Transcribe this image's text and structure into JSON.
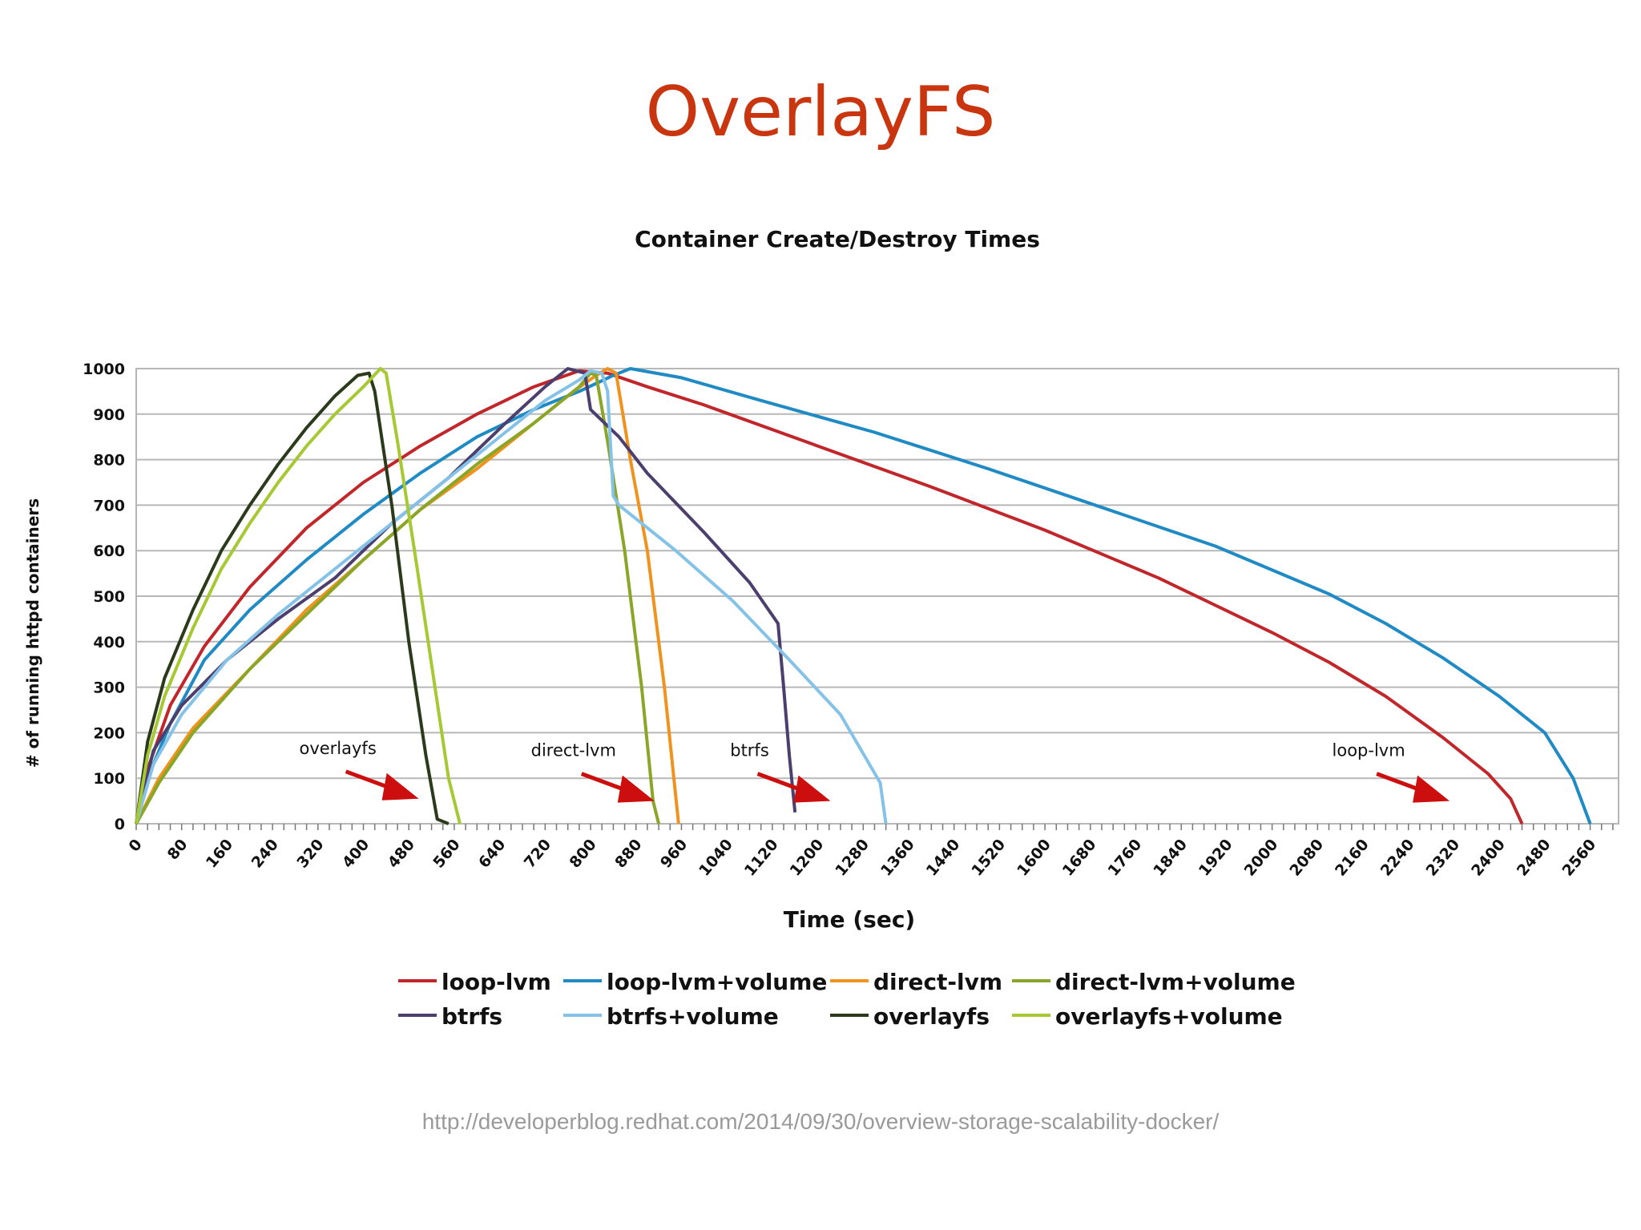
{
  "slide": {
    "title": "OverlayFS",
    "source_url": "http://developerblog.redhat.com/2014/09/30/overview-storage-scalability-docker/"
  },
  "chart_data": {
    "type": "line",
    "title": "Container Create/Destroy Times",
    "xlabel": "Time (sec)",
    "ylabel": "# of running httpd containers",
    "xlim": [
      0,
      2610
    ],
    "ylim": [
      0,
      1000
    ],
    "x_ticks": [
      "0",
      "80",
      "160",
      "240",
      "320",
      "400",
      "480",
      "560",
      "640",
      "720",
      "800",
      "880",
      "960",
      "1040",
      "1120",
      "1200",
      "1280",
      "1360",
      "1440",
      "1520",
      "1600",
      "1680",
      "1760",
      "1840",
      "1920",
      "2000",
      "2080",
      "2160",
      "2240",
      "2320",
      "2400",
      "2480",
      "2560"
    ],
    "y_ticks": [
      "0",
      "100",
      "200",
      "300",
      "400",
      "500",
      "600",
      "700",
      "800",
      "900",
      "1000"
    ],
    "grid": "horizontal",
    "legend_position": "bottom",
    "series": [
      {
        "name": "loop-lvm",
        "color": "#c0262a",
        "points": [
          [
            0,
            0
          ],
          [
            20,
            120
          ],
          [
            60,
            260
          ],
          [
            120,
            390
          ],
          [
            200,
            520
          ],
          [
            300,
            650
          ],
          [
            400,
            750
          ],
          [
            500,
            830
          ],
          [
            600,
            900
          ],
          [
            700,
            960
          ],
          [
            780,
            995
          ],
          [
            830,
            990
          ],
          [
            900,
            960
          ],
          [
            1000,
            920
          ],
          [
            1200,
            830
          ],
          [
            1400,
            740
          ],
          [
            1600,
            645
          ],
          [
            1800,
            540
          ],
          [
            2000,
            420
          ],
          [
            2100,
            355
          ],
          [
            2200,
            280
          ],
          [
            2300,
            190
          ],
          [
            2380,
            110
          ],
          [
            2420,
            55
          ],
          [
            2440,
            0
          ]
        ]
      },
      {
        "name": "loop-lvm+volume",
        "color": "#1f8ac4",
        "points": [
          [
            0,
            0
          ],
          [
            20,
            100
          ],
          [
            60,
            220
          ],
          [
            120,
            360
          ],
          [
            200,
            470
          ],
          [
            300,
            580
          ],
          [
            400,
            680
          ],
          [
            500,
            770
          ],
          [
            600,
            850
          ],
          [
            700,
            910
          ],
          [
            780,
            950
          ],
          [
            840,
            985
          ],
          [
            870,
            1000
          ],
          [
            960,
            980
          ],
          [
            1100,
            930
          ],
          [
            1300,
            860
          ],
          [
            1500,
            780
          ],
          [
            1700,
            695
          ],
          [
            1900,
            610
          ],
          [
            2100,
            505
          ],
          [
            2200,
            440
          ],
          [
            2300,
            365
          ],
          [
            2400,
            280
          ],
          [
            2480,
            200
          ],
          [
            2530,
            100
          ],
          [
            2560,
            0
          ]
        ]
      },
      {
        "name": "direct-lvm",
        "color": "#f0921e",
        "points": [
          [
            0,
            0
          ],
          [
            40,
            100
          ],
          [
            100,
            210
          ],
          [
            200,
            340
          ],
          [
            300,
            470
          ],
          [
            400,
            580
          ],
          [
            500,
            690
          ],
          [
            600,
            780
          ],
          [
            700,
            880
          ],
          [
            770,
            950
          ],
          [
            810,
            985
          ],
          [
            830,
            1000
          ],
          [
            845,
            990
          ],
          [
            870,
            800
          ],
          [
            900,
            600
          ],
          [
            930,
            300
          ],
          [
            955,
            0
          ]
        ]
      },
      {
        "name": "direct-lvm+volume",
        "color": "#8aa628",
        "points": [
          [
            0,
            0
          ],
          [
            40,
            90
          ],
          [
            100,
            200
          ],
          [
            200,
            340
          ],
          [
            300,
            460
          ],
          [
            400,
            580
          ],
          [
            500,
            690
          ],
          [
            600,
            790
          ],
          [
            700,
            880
          ],
          [
            780,
            960
          ],
          [
            800,
            990
          ],
          [
            810,
            985
          ],
          [
            830,
            840
          ],
          [
            860,
            600
          ],
          [
            890,
            300
          ],
          [
            910,
            50
          ],
          [
            920,
            0
          ]
        ]
      },
      {
        "name": "btrfs",
        "color": "#4c3f6e",
        "points": [
          [
            0,
            0
          ],
          [
            30,
            160
          ],
          [
            80,
            260
          ],
          [
            160,
            360
          ],
          [
            250,
            450
          ],
          [
            350,
            540
          ],
          [
            450,
            660
          ],
          [
            550,
            760
          ],
          [
            650,
            880
          ],
          [
            720,
            960
          ],
          [
            760,
            1000
          ],
          [
            790,
            990
          ],
          [
            800,
            910
          ],
          [
            850,
            850
          ],
          [
            900,
            770
          ],
          [
            1000,
            640
          ],
          [
            1080,
            530
          ],
          [
            1130,
            440
          ],
          [
            1140,
            300
          ],
          [
            1150,
            150
          ],
          [
            1160,
            25
          ]
        ]
      },
      {
        "name": "btrfs+volume",
        "color": "#85c2e8",
        "points": [
          [
            0,
            0
          ],
          [
            30,
            130
          ],
          [
            80,
            240
          ],
          [
            160,
            360
          ],
          [
            250,
            460
          ],
          [
            350,
            560
          ],
          [
            450,
            660
          ],
          [
            550,
            760
          ],
          [
            650,
            860
          ],
          [
            720,
            930
          ],
          [
            780,
            975
          ],
          [
            800,
            995
          ],
          [
            820,
            990
          ],
          [
            830,
            950
          ],
          [
            840,
            720
          ],
          [
            850,
            700
          ],
          [
            950,
            600
          ],
          [
            1050,
            490
          ],
          [
            1150,
            360
          ],
          [
            1240,
            240
          ],
          [
            1310,
            90
          ],
          [
            1320,
            0
          ]
        ]
      },
      {
        "name": "overlayfs",
        "color": "#2b3a1a",
        "points": [
          [
            0,
            0
          ],
          [
            20,
            180
          ],
          [
            50,
            320
          ],
          [
            100,
            470
          ],
          [
            150,
            600
          ],
          [
            200,
            700
          ],
          [
            250,
            790
          ],
          [
            300,
            870
          ],
          [
            350,
            940
          ],
          [
            390,
            985
          ],
          [
            410,
            990
          ],
          [
            420,
            950
          ],
          [
            450,
            700
          ],
          [
            480,
            400
          ],
          [
            510,
            150
          ],
          [
            530,
            10
          ],
          [
            550,
            0
          ]
        ]
      },
      {
        "name": "overlayfs+volume",
        "color": "#a6c832",
        "points": [
          [
            0,
            0
          ],
          [
            20,
            150
          ],
          [
            50,
            280
          ],
          [
            100,
            430
          ],
          [
            150,
            560
          ],
          [
            200,
            660
          ],
          [
            250,
            750
          ],
          [
            300,
            830
          ],
          [
            350,
            900
          ],
          [
            400,
            960
          ],
          [
            430,
            1000
          ],
          [
            440,
            990
          ],
          [
            460,
            840
          ],
          [
            490,
            600
          ],
          [
            520,
            350
          ],
          [
            550,
            100
          ],
          [
            570,
            0
          ]
        ]
      }
    ],
    "annotations": [
      {
        "text": "overlayfs",
        "x": 355,
        "y": 150
      },
      {
        "text": "direct-lvm",
        "x": 770,
        "y": 145
      },
      {
        "text": "btrfs",
        "x": 1080,
        "y": 145
      },
      {
        "text": "loop-lvm",
        "x": 2170,
        "y": 145
      }
    ],
    "annotation_color": "#cc0e0e"
  }
}
